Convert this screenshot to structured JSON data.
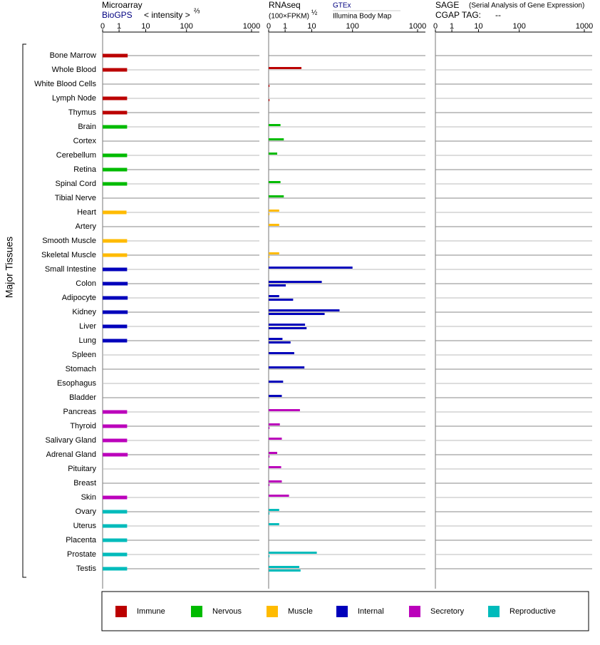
{
  "chart_data": {
    "type": "bar",
    "orientation": "horizontal",
    "y_label": "Major Tissues",
    "categories": [
      "Bone Marrow",
      "Whole Blood",
      "White Blood Cells",
      "Lymph Node",
      "Thymus",
      "Brain",
      "Cortex",
      "Cerebellum",
      "Retina",
      "Spinal Cord",
      "Tibial Nerve",
      "Heart",
      "Artery",
      "Smooth Muscle",
      "Skeletal Muscle",
      "Small Intestine",
      "Colon",
      "Adipocyte",
      "Kidney",
      "Liver",
      "Lung",
      "Spleen",
      "Stomach",
      "Esophagus",
      "Bladder",
      "Pancreas",
      "Thyroid",
      "Salivary Gland",
      "Adrenal Gland",
      "Pituitary",
      "Breast",
      "Skin",
      "Ovary",
      "Uterus",
      "Placenta",
      "Prostate",
      "Testis"
    ],
    "category_colors": [
      "#bb0000",
      "#bb0000",
      "#bb0000",
      "#bb0000",
      "#bb0000",
      "#00bb00",
      "#00bb00",
      "#00bb00",
      "#00bb00",
      "#00bb00",
      "#00bb00",
      "#ffbb00",
      "#ffbb00",
      "#ffbb00",
      "#ffbb00",
      "#0000bb",
      "#0000bb",
      "#0000bb",
      "#0000bb",
      "#0000bb",
      "#0000bb",
      "#0000bb",
      "#0000bb",
      "#0000bb",
      "#0000bb",
      "#bb00bb",
      "#bb00bb",
      "#bb00bb",
      "#bb00bb",
      "#bb00bb",
      "#bb00bb",
      "#bb00bb",
      "#00bbbb",
      "#00bbbb",
      "#00bbbb",
      "#00bbbb",
      "#00bbbb"
    ],
    "legend": [
      {
        "name": "Immune",
        "color": "#bb0000"
      },
      {
        "name": "Nervous",
        "color": "#00bb00"
      },
      {
        "name": "Muscle",
        "color": "#ffbb00"
      },
      {
        "name": "Internal",
        "color": "#0000bb"
      },
      {
        "name": "Secretory",
        "color": "#bb00bb"
      },
      {
        "name": "Reproductive",
        "color": "#00bbbb"
      }
    ],
    "panels": [
      {
        "title": "Microarray",
        "axis_label": "< intensity >",
        "axis_exponent": "⅔",
        "xlim": [
          0,
          1000
        ],
        "xticks": [
          0,
          1,
          10,
          100,
          1000
        ],
        "series": [
          {
            "name": "BioGPS",
            "values": [
              2.1,
              2.0,
              null,
              2.0,
              2.0,
              2.0,
              null,
              2.0,
              2.0,
              2.0,
              null,
              1.9,
              null,
              2.0,
              2.0,
              2.0,
              2.1,
              2.1,
              2.1,
              2.0,
              2.0,
              null,
              null,
              null,
              null,
              2.0,
              2.0,
              2.0,
              2.1,
              null,
              null,
              2.0,
              2.0,
              2.0,
              2.0,
              2.0,
              2.0
            ]
          }
        ]
      },
      {
        "title": "RNAseq",
        "axis_label": "(100×FPKM)",
        "axis_exponent": "½",
        "xlim": [
          0,
          1000
        ],
        "xticks": [
          0,
          1,
          10,
          100,
          1000
        ],
        "series": [
          {
            "name": "GTEx",
            "values": [
              null,
              4.1,
              null,
              null,
              null,
              0.72,
              0.92,
              0.52,
              null,
              0.72,
              0.92,
              0.64,
              0.64,
              null,
              0.64,
              100,
              17.6,
              0.64,
              48,
              5.6,
              0.84,
              2.2,
              5.3,
              0.88,
              0.8,
              3.6,
              0.68,
              0.8,
              0.52,
              0.76,
              0.8,
              1.4,
              0.64,
              0.64,
              null,
              13.3,
              3.4
            ]
          },
          {
            "name": "Illumina Body Map",
            "values": [
              null,
              null,
              0.05,
              0.05,
              null,
              null,
              null,
              null,
              null,
              null,
              null,
              0.05,
              null,
              null,
              0.05,
              null,
              1.06,
              2.0,
              20.7,
              6.4,
              1.6,
              null,
              null,
              null,
              null,
              null,
              0.05,
              null,
              0.05,
              null,
              0.05,
              null,
              0.05,
              null,
              null,
              0.05,
              3.8
            ]
          }
        ]
      },
      {
        "title": "SAGE",
        "subtitle": "(Serial Analysis of Gene Expression)",
        "tag_label": "CGAP TAG:",
        "tag": "--",
        "xlim": [
          0,
          1000
        ],
        "xticks": [
          0,
          1,
          10,
          100,
          1000
        ],
        "series": []
      }
    ]
  }
}
